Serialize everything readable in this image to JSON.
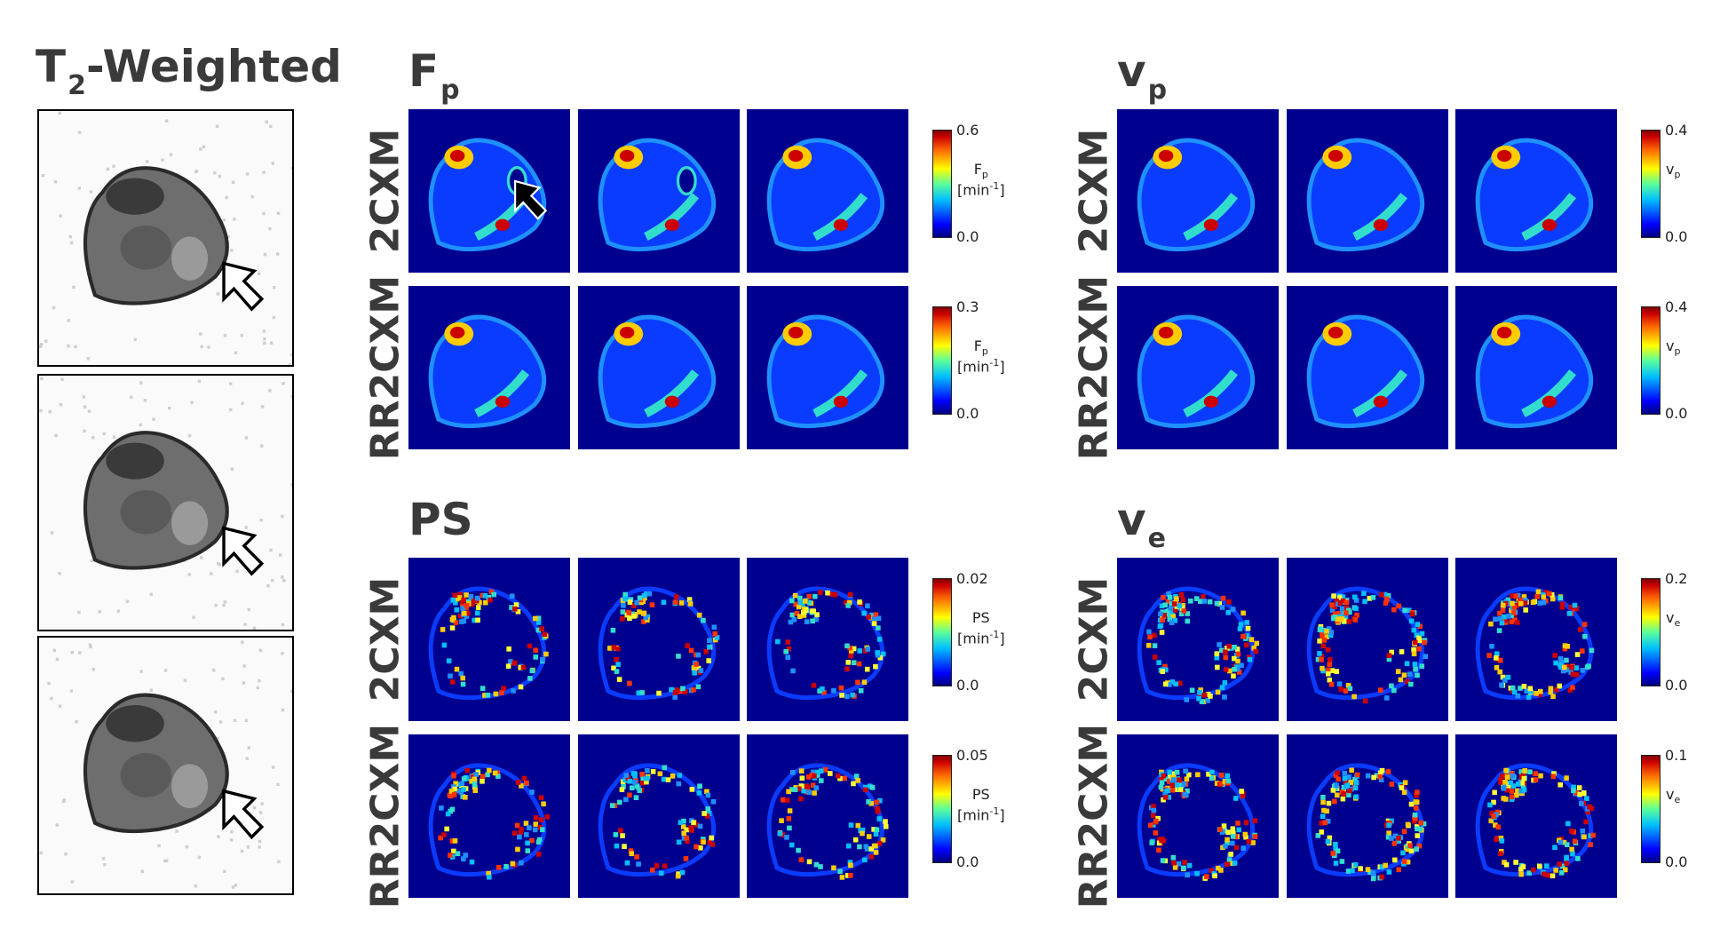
{
  "t2": {
    "title_main": "T",
    "title_sub": "2",
    "title_suffix": "-Weighted",
    "frames": 3
  },
  "panels": [
    {
      "key": "fp",
      "title": "F",
      "title_sub": "p",
      "rows": [
        {
          "label": "2CXM",
          "cbar": {
            "max": "0.6",
            "min": "0.0",
            "name": "F",
            "name_sub": "p",
            "unit": "[min",
            "unit_sup": "-1",
            "unit_end": "]"
          }
        },
        {
          "label": "RR2CXM",
          "cbar": {
            "max": "0.3",
            "min": "0.0",
            "name": "F",
            "name_sub": "p",
            "unit": "[min",
            "unit_sup": "-1",
            "unit_end": "]"
          }
        }
      ]
    },
    {
      "key": "vp",
      "title": "v",
      "title_sub": "p",
      "rows": [
        {
          "label": "2CXM",
          "cbar": {
            "max": "0.4",
            "min": "0.0",
            "name": "v",
            "name_sub": "p",
            "unit": "",
            "unit_sup": "",
            "unit_end": ""
          }
        },
        {
          "label": "RR2CXM",
          "cbar": {
            "max": "0.4",
            "min": "0.0",
            "name": "v",
            "name_sub": "p",
            "unit": "",
            "unit_sup": "",
            "unit_end": ""
          }
        }
      ]
    },
    {
      "key": "ps",
      "title": "PS",
      "title_sub": "",
      "rows": [
        {
          "label": "2CXM",
          "cbar": {
            "max": "0.02",
            "min": "0.0",
            "name": "PS",
            "name_sub": "",
            "unit": "[min",
            "unit_sup": "-1",
            "unit_end": "]"
          }
        },
        {
          "label": "RR2CXM",
          "cbar": {
            "max": "0.05",
            "min": "0.0",
            "name": "PS",
            "name_sub": "",
            "unit": "[min",
            "unit_sup": "-1",
            "unit_end": "]"
          }
        }
      ]
    },
    {
      "key": "ve",
      "title": "v",
      "title_sub": "e",
      "rows": [
        {
          "label": "2CXM",
          "cbar": {
            "max": "0.2",
            "min": "0.0",
            "name": "v",
            "name_sub": "e",
            "unit": "",
            "unit_sup": "",
            "unit_end": ""
          }
        },
        {
          "label": "RR2CXM",
          "cbar": {
            "max": "0.1",
            "min": "0.0",
            "name": "v",
            "name_sub": "e",
            "unit": "",
            "unit_sup": "",
            "unit_end": ""
          }
        }
      ]
    }
  ],
  "colors": {
    "map_background": "#00008f",
    "hot": "#cc0000",
    "warm": "#ffcc00",
    "mid": "#33ddcc",
    "cool": "#1e90ff",
    "arrow_black": "#000000",
    "arrow_white": "#ffffff"
  },
  "icons": {
    "fp_arrow": "black-arrow-icon",
    "t2_arrow": "white-arrow-icon"
  }
}
